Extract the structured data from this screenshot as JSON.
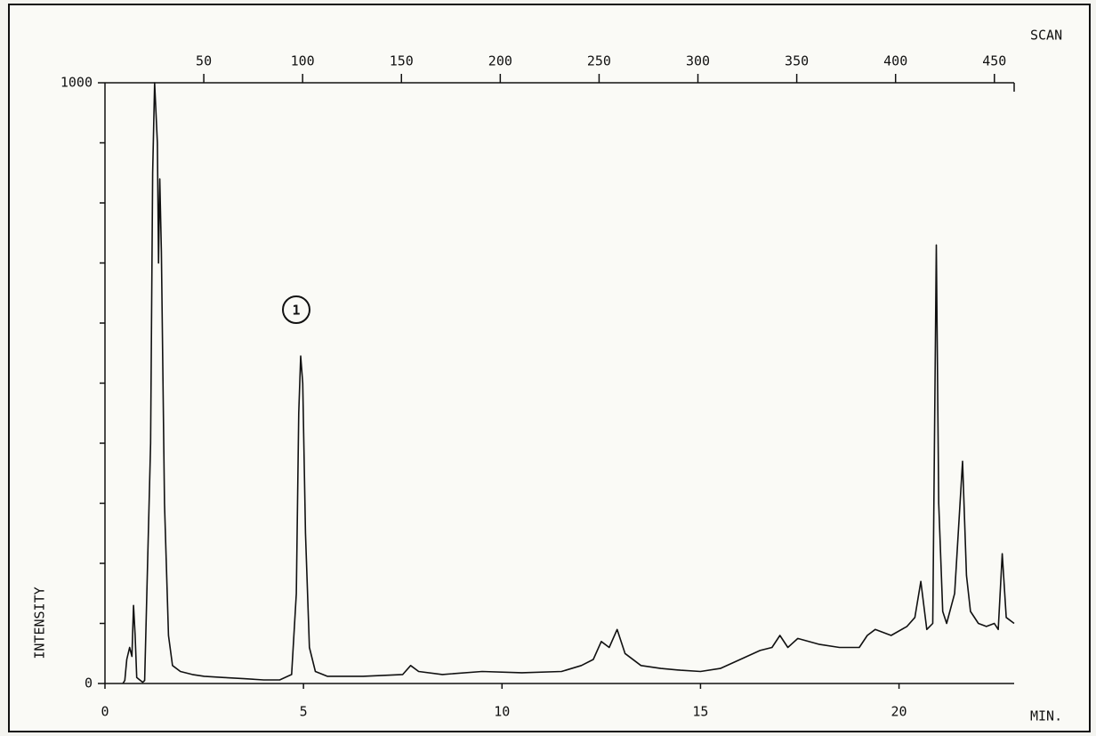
{
  "chart_data": {
    "type": "line",
    "xlabel": "MIN.",
    "ylabel": "INTENSITY",
    "x2label": "SCAN",
    "annotation": "1",
    "xlim": [
      0,
      22.9
    ],
    "xticks": [
      0,
      5,
      10,
      15,
      20
    ],
    "x2lim": [
      0,
      460
    ],
    "x2ticks": [
      50,
      100,
      150,
      200,
      250,
      300,
      350,
      400,
      450
    ],
    "ylim": [
      0,
      1000
    ],
    "yticks": [
      0,
      1000
    ],
    "yminorticks": [
      100,
      200,
      300,
      400,
      500,
      600,
      700,
      800,
      900
    ],
    "x": [
      0.45,
      0.5,
      0.55,
      0.62,
      0.68,
      0.72,
      0.76,
      0.8,
      0.95,
      1.0,
      1.15,
      1.2,
      1.25,
      1.32,
      1.35,
      1.38,
      1.42,
      1.5,
      1.6,
      1.7,
      1.9,
      2.2,
      2.5,
      3.0,
      3.5,
      4.0,
      4.4,
      4.7,
      4.82,
      4.88,
      4.93,
      4.98,
      5.05,
      5.15,
      5.3,
      5.6,
      6.5,
      7.5,
      7.7,
      7.9,
      8.5,
      9.5,
      10.5,
      11.5,
      12.0,
      12.3,
      12.5,
      12.7,
      12.9,
      13.1,
      13.5,
      14.0,
      14.5,
      15.0,
      15.5,
      16.0,
      16.5,
      16.8,
      17.0,
      17.2,
      17.45,
      18.0,
      18.5,
      19.0,
      19.2,
      19.4,
      19.8,
      20.2,
      20.4,
      20.55,
      20.7,
      20.85,
      20.94,
      21.0,
      21.1,
      21.2,
      21.4,
      21.6,
      21.7,
      21.8,
      22.0,
      22.2,
      22.4,
      22.5,
      22.6,
      22.7,
      22.9
    ],
    "series": [
      {
        "color": "#111111",
        "values": [
          0,
          5,
          40,
          60,
          45,
          130,
          80,
          10,
          2,
          5,
          400,
          850,
          1000,
          900,
          700,
          840,
          720,
          300,
          80,
          30,
          20,
          15,
          12,
          10,
          8,
          6,
          6,
          15,
          150,
          450,
          545,
          500,
          250,
          60,
          20,
          12,
          12,
          15,
          30,
          20,
          15,
          20,
          18,
          20,
          30,
          40,
          70,
          60,
          90,
          50,
          30,
          25,
          22,
          20,
          25,
          40,
          55,
          60,
          80,
          60,
          75,
          65,
          60,
          60,
          80,
          90,
          80,
          95,
          110,
          170,
          90,
          100,
          730,
          300,
          120,
          100,
          150,
          370,
          180,
          120,
          100,
          95,
          100,
          90,
          216,
          110,
          100
        ]
      }
    ]
  }
}
